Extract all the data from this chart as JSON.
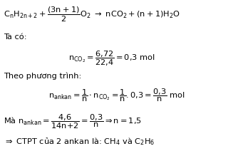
{
  "background_color": "#ffffff",
  "figsize": [
    3.27,
    2.19
  ],
  "dpi": 100
}
